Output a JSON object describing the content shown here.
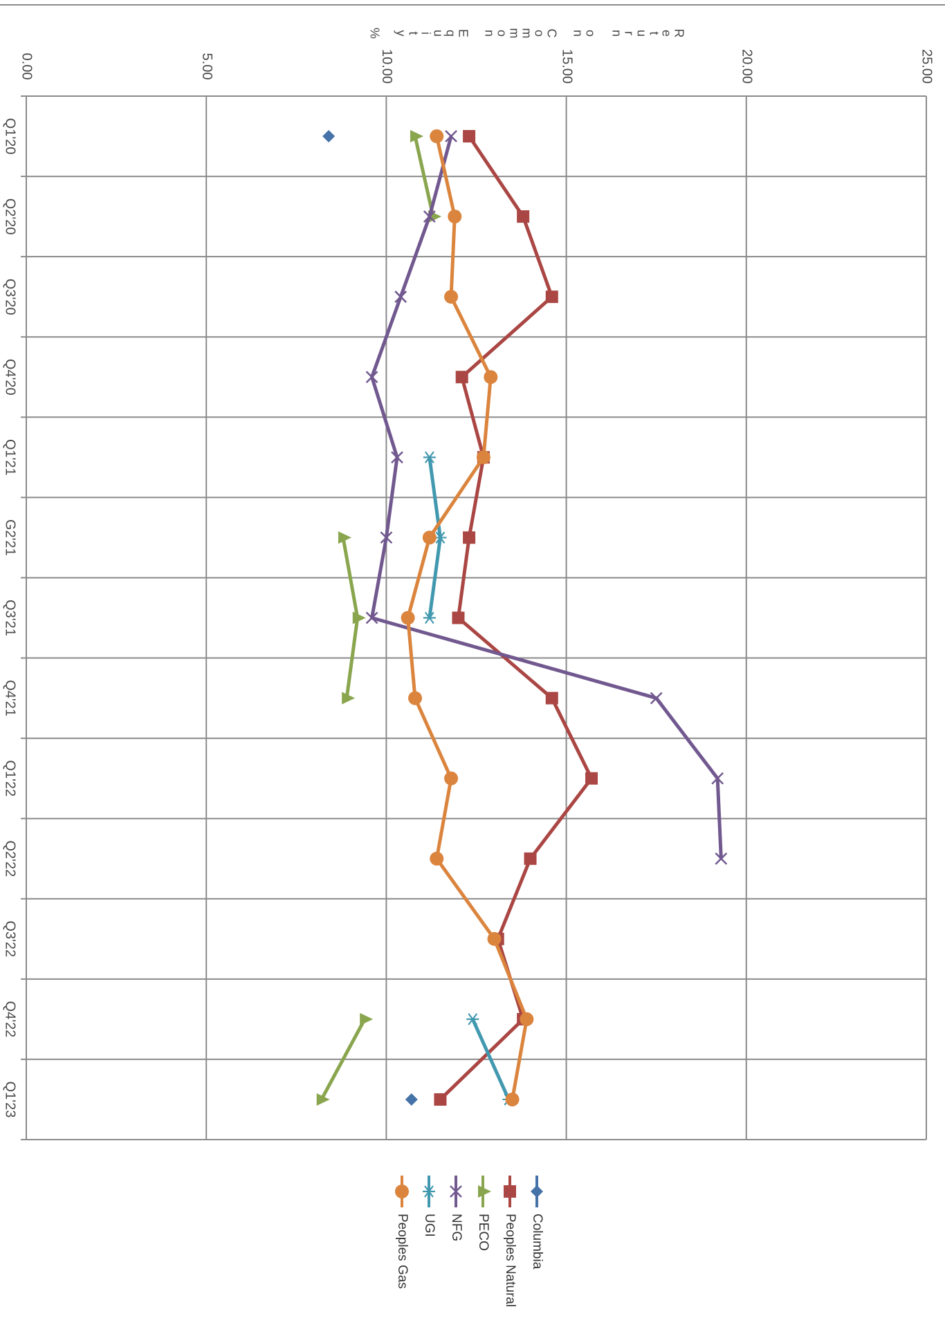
{
  "chart_data": {
    "type": "line",
    "orientation": "rotated-90-clockwise",
    "ylabel": "Return on Common Equity %",
    "ylim": [
      0,
      25
    ],
    "y_ticks": [
      "0.00",
      "5.00",
      "10.00",
      "15.00",
      "20.00",
      "25.00"
    ],
    "categories": [
      "Q1'20",
      "Q2'20",
      "Q3'20",
      "Q4'20",
      "Q1'21",
      "G2'21",
      "Q3'21",
      "Q4'21",
      "Q1'22",
      "Q2'22",
      "Q3'22",
      "Q4'22",
      "Q1'23"
    ],
    "grid": true,
    "legend_position": "below-plot",
    "series": [
      {
        "name": "Columbia",
        "color": "#4572A7",
        "marker": "diamond",
        "values": [
          8.4,
          null,
          null,
          null,
          null,
          null,
          null,
          null,
          null,
          null,
          null,
          null,
          10.7
        ]
      },
      {
        "name": "Peoples Natural",
        "color": "#AA4643",
        "marker": "square",
        "values": [
          12.3,
          13.8,
          14.6,
          12.1,
          12.7,
          12.3,
          12.0,
          14.6,
          15.7,
          14.0,
          13.1,
          13.8,
          11.5
        ]
      },
      {
        "name": "PECO",
        "color": "#89A54E",
        "marker": "triangle",
        "values": [
          10.8,
          11.3,
          null,
          null,
          null,
          8.8,
          9.2,
          8.9,
          null,
          null,
          null,
          9.4,
          8.2
        ]
      },
      {
        "name": "NFG",
        "color": "#71588F",
        "marker": "x",
        "values": [
          11.8,
          11.2,
          10.4,
          9.6,
          10.3,
          10.0,
          9.6,
          17.5,
          19.2,
          19.3,
          null,
          null,
          null
        ]
      },
      {
        "name": "UGI",
        "color": "#4198AF",
        "marker": "star",
        "values": [
          null,
          null,
          null,
          null,
          11.2,
          11.5,
          11.2,
          null,
          null,
          null,
          null,
          12.4,
          13.4
        ]
      },
      {
        "name": "Peoples Gas",
        "color": "#DB843D",
        "marker": "circle",
        "values": [
          11.4,
          11.9,
          11.8,
          12.9,
          12.7,
          11.2,
          10.6,
          10.8,
          11.8,
          11.4,
          13.0,
          13.9,
          13.5
        ]
      }
    ]
  }
}
